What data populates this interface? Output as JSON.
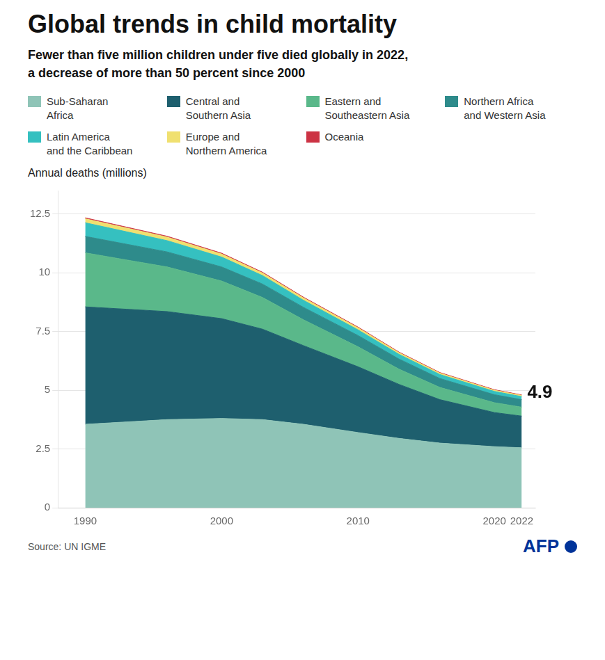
{
  "chart_data": {
    "type": "area",
    "stacked": true,
    "title": "Global trends in child mortality",
    "subtitle": "Fewer than five million children under five died globally in 2022,\na decrease of more than 50 percent since 2000",
    "y_label": "Annual deaths (millions)",
    "source": "Source: UN IGME",
    "credit": "AFP",
    "annotation": {
      "text": "4.9",
      "x": 2022,
      "y": 4.9
    },
    "x": [
      1990,
      1993,
      1996,
      2000,
      2003,
      2006,
      2010,
      2013,
      2016,
      2020,
      2022
    ],
    "series": [
      {
        "name": "Sub-Saharan\nAfrica",
        "color": "#8fc4b7",
        "values": [
          3.55,
          3.65,
          3.75,
          3.8,
          3.75,
          3.55,
          3.2,
          2.95,
          2.75,
          2.6,
          2.55
        ]
      },
      {
        "name": "Central and\nSouthern Asia",
        "color": "#1e5f6e",
        "values": [
          5.0,
          4.8,
          4.6,
          4.25,
          3.85,
          3.35,
          2.8,
          2.3,
          1.85,
          1.45,
          1.35
        ]
      },
      {
        "name": "Eastern and\nSoutheastern Asia",
        "color": "#5ab88a",
        "values": [
          2.3,
          2.1,
          1.9,
          1.6,
          1.35,
          1.1,
          0.85,
          0.65,
          0.52,
          0.42,
          0.38
        ]
      },
      {
        "name": "Northern Africa\nand Western Asia",
        "color": "#2e8b8b",
        "values": [
          0.7,
          0.67,
          0.64,
          0.6,
          0.57,
          0.53,
          0.48,
          0.43,
          0.38,
          0.34,
          0.32
        ]
      },
      {
        "name": "Latin America\nand the Caribbean",
        "color": "#35c0c0",
        "values": [
          0.58,
          0.53,
          0.48,
          0.42,
          0.36,
          0.3,
          0.24,
          0.2,
          0.17,
          0.14,
          0.13
        ]
      },
      {
        "name": "Europe and\nNorthern America",
        "color": "#f0e070",
        "values": [
          0.17,
          0.16,
          0.15,
          0.13,
          0.11,
          0.1,
          0.09,
          0.07,
          0.06,
          0.05,
          0.05
        ]
      },
      {
        "name": "Oceania",
        "color": "#cc3344",
        "values": [
          0.04,
          0.038,
          0.037,
          0.035,
          0.033,
          0.031,
          0.028,
          0.026,
          0.024,
          0.022,
          0.021
        ]
      }
    ],
    "xlim": [
      1988,
      2023
    ],
    "xticks": [
      1990,
      2000,
      2010,
      2020,
      2022
    ],
    "ylim": [
      0,
      13.5
    ],
    "yticks": [
      0,
      2.5,
      5,
      7.5,
      10,
      12.5
    ],
    "grid": true
  }
}
